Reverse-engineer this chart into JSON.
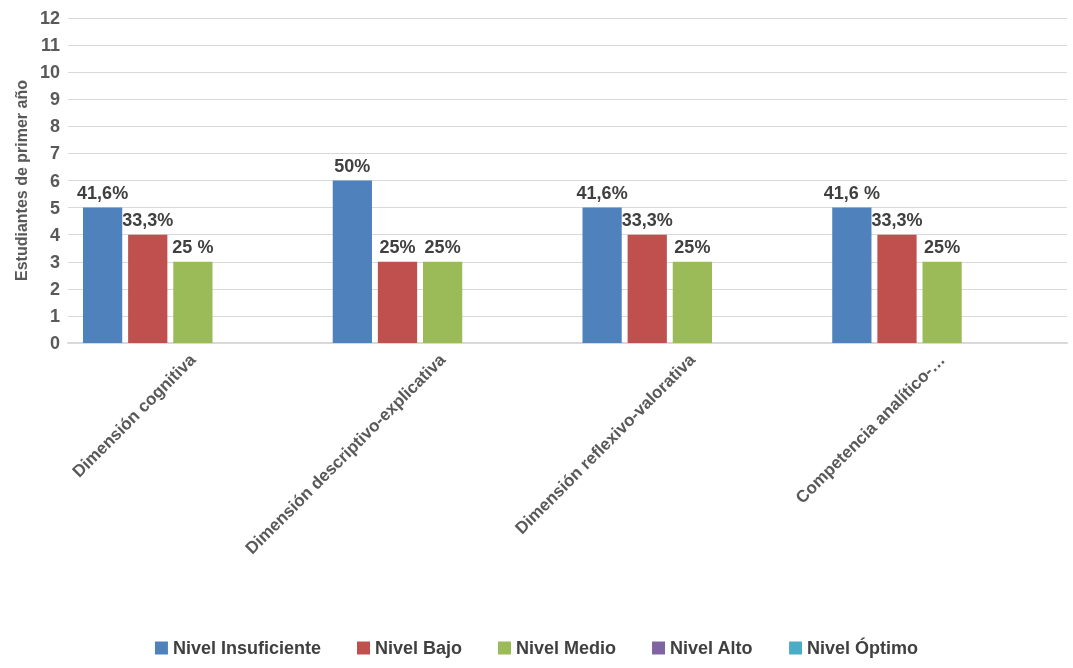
{
  "chart_data": {
    "type": "bar",
    "ylabel": "Estudiantes de primer año",
    "categories": [
      "Dimensión cognitiva",
      "Dimensión descriptivo-explicativa",
      "Dimensión reflexivo-valorativa",
      "Competencia analítico-…"
    ],
    "series": [
      {
        "name": "Nivel Insuficiente",
        "color": "#4f81bd",
        "values": [
          5,
          6,
          5,
          5
        ]
      },
      {
        "name": "Nivel Bajo",
        "color": "#c0504d",
        "values": [
          4,
          3,
          4,
          4
        ]
      },
      {
        "name": "Nivel Medio",
        "color": "#9bbb59",
        "values": [
          3,
          3,
          3,
          3
        ]
      },
      {
        "name": "Nivel Alto",
        "color": "#8064a2",
        "values": [
          0,
          0,
          0,
          0
        ]
      },
      {
        "name": "Nivel Óptimo",
        "color": "#4bacc6",
        "values": [
          0,
          0,
          0,
          0
        ]
      }
    ],
    "annotations": [
      "41,6%",
      "33,3%",
      "25 %",
      "50%",
      "25%",
      "25%",
      "41,6%",
      "33,3%",
      "25%",
      "41,6 %",
      "33,3%",
      "25%"
    ],
    "ylim": [
      0,
      12
    ],
    "yticks": [
      0,
      1,
      2,
      3,
      4,
      5,
      6,
      7,
      8,
      9,
      10,
      11,
      12
    ],
    "grid": "y",
    "legend": "bottom"
  }
}
